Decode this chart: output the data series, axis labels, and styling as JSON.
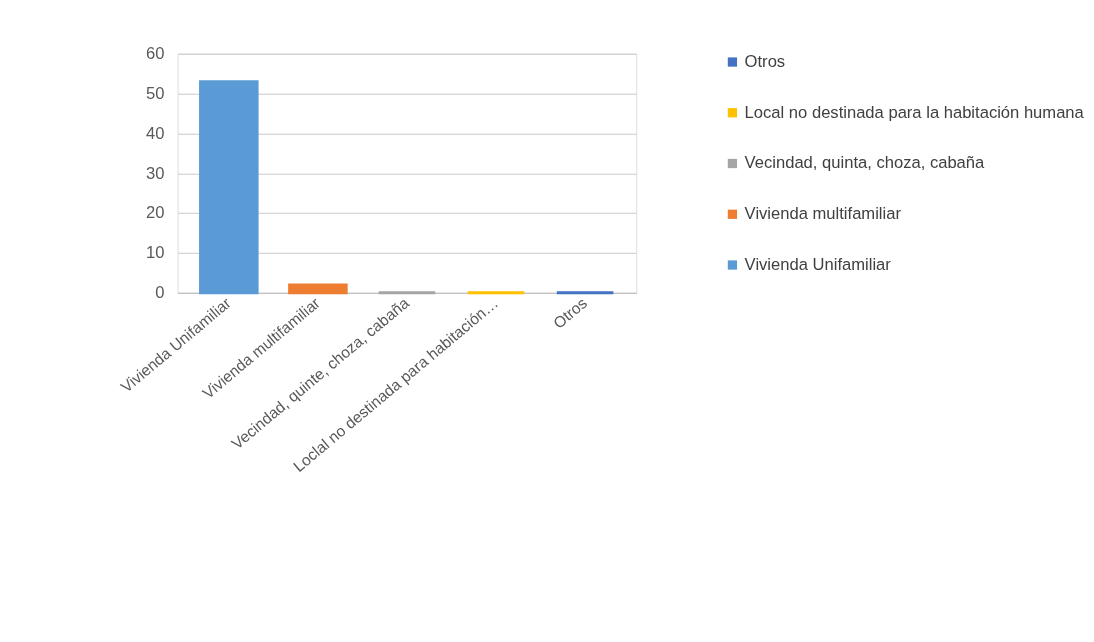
{
  "chart_data": {
    "type": "bar",
    "categories": [
      "Vivienda Unifamiliar",
      "Vivienda multifamiliar",
      "Vecindad, quinte, choza, cabaña",
      "Loclal no destinada para habitación…",
      "Otros"
    ],
    "series": [
      {
        "name": "Vivienda Unifamiliar",
        "color": "#5b9bd5",
        "values": [
          53,
          null,
          null,
          null,
          null
        ]
      },
      {
        "name": "Vivienda multifamiliar",
        "color": "#ed7d31",
        "values": [
          null,
          2,
          null,
          null,
          null
        ]
      },
      {
        "name": "Vecindad, quinta, choza, cabaña",
        "color": "#a5a5a5",
        "values": [
          null,
          null,
          0,
          null,
          null
        ]
      },
      {
        "name": "Local no destinada para la habitación humana",
        "color": "#ffc000",
        "values": [
          null,
          null,
          null,
          0,
          null
        ]
      },
      {
        "name": "Otros",
        "color": "#4472c4",
        "values": [
          null,
          null,
          null,
          null,
          0
        ]
      }
    ],
    "ylim": [
      0,
      60
    ],
    "yticks": [
      0,
      10,
      20,
      30,
      40,
      50,
      60
    ],
    "grid": "y",
    "legend": "right"
  }
}
